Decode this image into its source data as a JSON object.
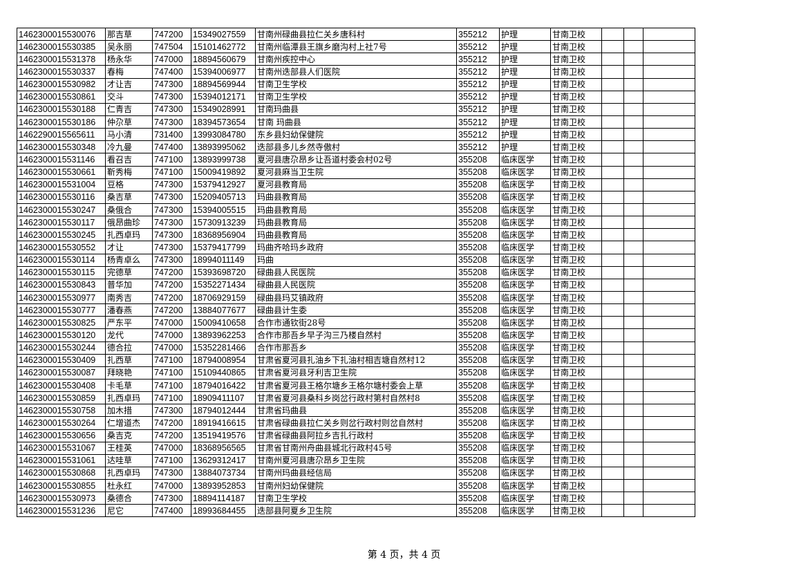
{
  "table": {
    "rows": [
      [
        "1462300015530076",
        "那吉草",
        "747200",
        "15349027559",
        "甘南州碌曲县拉仁关乡唐科村",
        "355212",
        "护理",
        "甘南卫校",
        "",
        "",
        ""
      ],
      [
        "1462300015530385",
        "吴永丽",
        "747504",
        "15101462772",
        "甘南州临潭县王旗乡磨沟村上社7号",
        "355212",
        "护理",
        "甘南卫校",
        "",
        "",
        ""
      ],
      [
        "1462300015531378",
        "杨永华",
        "747000",
        "18894560679",
        "甘南州疾控中心",
        "355212",
        "护理",
        "甘南卫校",
        "",
        "",
        ""
      ],
      [
        "1462300015530337",
        "春梅",
        "747400",
        "15394006977",
        "甘南州迭部县人们医院",
        "355212",
        "护理",
        "甘南卫校",
        "",
        "",
        ""
      ],
      [
        "1462300015530982",
        "才让吉",
        "747300",
        "18894569944",
        "甘南卫生学校",
        "355212",
        "护理",
        "甘南卫校",
        "",
        "",
        ""
      ],
      [
        "1462300015530861",
        "交斗",
        "747300",
        "15394012171",
        "甘南卫生学校",
        "355212",
        "护理",
        "甘南卫校",
        "",
        "",
        ""
      ],
      [
        "1462300015530188",
        "仁青吉",
        "747300",
        "15349028991",
        "甘南玛曲县",
        "355212",
        "护理",
        "甘南卫校",
        "",
        "",
        ""
      ],
      [
        "1462300015530186",
        "仲尕草",
        "747300",
        "18394573654",
        "甘南 玛曲县",
        "355212",
        "护理",
        "甘南卫校",
        "",
        "",
        ""
      ],
      [
        "1462290015565611",
        "马小清",
        "731400",
        "13993084780",
        "东乡县妇幼保健院",
        "355212",
        "护理",
        "甘南卫校",
        "",
        "",
        ""
      ],
      [
        "1462300015530348",
        "冷九曼",
        "747400",
        "13893995062",
        "迭部县多儿乡然寺傲村",
        "355212",
        "护理",
        "甘南卫校",
        "",
        "",
        ""
      ],
      [
        "1462300015531146",
        "看召吉",
        "747100",
        "13893999738",
        "夏河县唐尕昂乡让吾道村委会村02号",
        "355208",
        "临床医学",
        "甘南卫校",
        "",
        "",
        ""
      ],
      [
        "1462300015530661",
        "靳秀梅",
        "747100",
        "15009419892",
        "夏河县麻当卫生院",
        "355208",
        "临床医学",
        "甘南卫校",
        "",
        "",
        ""
      ],
      [
        "1462300015531004",
        "豆格",
        "747300",
        "15379412927",
        "夏河县教育局",
        "355208",
        "临床医学",
        "甘南卫校",
        "",
        "",
        ""
      ],
      [
        "1462300015530116",
        "桑吉草",
        "747300",
        "15209405713",
        "玛曲县教育局",
        "355208",
        "临床医学",
        "甘南卫校",
        "",
        "",
        ""
      ],
      [
        "1462300015530247",
        "桑俄合",
        "747300",
        "15394005515",
        "玛曲县教育局",
        "355208",
        "临床医学",
        "甘南卫校",
        "",
        "",
        ""
      ],
      [
        "1462300015530117",
        "俄昂曲珍",
        "747300",
        "15730913239",
        "玛曲县教育局",
        "355208",
        "临床医学",
        "甘南卫校",
        "",
        "",
        ""
      ],
      [
        "1462300015530245",
        "扎西卓玛",
        "747300",
        "18368956904",
        "玛曲县教育局",
        "355208",
        "临床医学",
        "甘南卫校",
        "",
        "",
        ""
      ],
      [
        "1462300015530552",
        "才让",
        "747300",
        "15379417799",
        "玛曲齐哈玛乡政府",
        "355208",
        "临床医学",
        "甘南卫校",
        "",
        "",
        ""
      ],
      [
        "1462300015530114",
        "杨青卓么",
        "747300",
        "18994011149",
        "玛曲",
        "355208",
        "临床医学",
        "甘南卫校",
        "",
        "",
        ""
      ],
      [
        "1462300015530115",
        "完德草",
        "747200",
        "15393698720",
        "碌曲县人民医院",
        "355208",
        "临床医学",
        "甘南卫校",
        "",
        "",
        ""
      ],
      [
        "1462300015530843",
        "普华加",
        "747200",
        "15352271434",
        "碌曲县人民医院",
        "355208",
        "临床医学",
        "甘南卫校",
        "",
        "",
        ""
      ],
      [
        "1462300015530977",
        "南秀吉",
        "747200",
        "18706929159",
        "碌曲县玛艾镇政府",
        "355208",
        "临床医学",
        "甘南卫校",
        "",
        "",
        ""
      ],
      [
        "1462300015530777",
        "潘春燕",
        "747200",
        "13884077677",
        "碌曲县计生委",
        "355208",
        "临床医学",
        "甘南卫校",
        "",
        "",
        ""
      ],
      [
        "1462300015530825",
        "严东平",
        "747000",
        "15009410658",
        "合作市通钦街28号",
        "355208",
        "临床医学",
        "甘南卫校",
        "",
        "",
        ""
      ],
      [
        "1462300015530120",
        "龙代",
        "747000",
        "13893962253",
        "合作市那吾乡早子沟三乃楼自然村",
        "355208",
        "临床医学",
        "甘南卫校",
        "",
        "",
        ""
      ],
      [
        "1462300015530244",
        "德合拉",
        "747000",
        "15352281466",
        "合作市那吾乡",
        "355208",
        "临床医学",
        "甘南卫校",
        "",
        "",
        ""
      ],
      [
        "1462300015530409",
        "扎西草",
        "747100",
        "18794008954",
        "甘肃省夏河县扎油乡下扎油村相吉塘自然村12",
        "355208",
        "临床医学",
        "甘南卫校",
        "",
        "",
        ""
      ],
      [
        "1462300015530087",
        "拜晓艳",
        "747100",
        "15109440865",
        "甘肃省夏河县牙利吉卫生院",
        "355208",
        "临床医学",
        "甘南卫校",
        "",
        "",
        ""
      ],
      [
        "1462300015530408",
        "卡毛草",
        "747100",
        "18794016422",
        "甘肃省夏河县王格尔塘乡王格尔塘村委会上草",
        "355208",
        "临床医学",
        "甘南卫校",
        "",
        "",
        ""
      ],
      [
        "1462300015530859",
        "扎西卓玛",
        "747100",
        "18909411107",
        "甘肃省夏河县桑科乡岗岔行政村第村自然村8",
        "355208",
        "临床医学",
        "甘南卫校",
        "",
        "",
        ""
      ],
      [
        "1462300015530758",
        "加木措",
        "747300",
        "18794012444",
        "甘肃省玛曲县",
        "355208",
        "临床医学",
        "甘南卫校",
        "",
        "",
        ""
      ],
      [
        "1462300015530264",
        "仁增道杰",
        "747200",
        "18919416615",
        "甘肃省碌曲县拉仁关乡则岔行政村则岔自然村",
        "355208",
        "临床医学",
        "甘南卫校",
        "",
        "",
        ""
      ],
      [
        "1462300015530656",
        "桑吉克",
        "747200",
        "13519419576",
        "甘肃省碌曲县阿拉乡吉扎行政村",
        "355208",
        "临床医学",
        "甘南卫校",
        "",
        "",
        ""
      ],
      [
        "1462300015531067",
        "王桂英",
        "747000",
        "18368956565",
        "甘肃省甘南州舟曲县城北行政村45号",
        "355208",
        "临床医学",
        "甘南卫校",
        "",
        "",
        ""
      ],
      [
        "1462300015531061",
        "达哇草",
        "747100",
        "13629312417",
        "甘南州夏河县唐尕昂乡卫生院",
        "355208",
        "临床医学",
        "甘南卫校",
        "",
        "",
        ""
      ],
      [
        "1462300015530868",
        "扎西卓玛",
        "747300",
        "13884073734",
        "甘南州玛曲县经信局",
        "355208",
        "临床医学",
        "甘南卫校",
        "",
        "",
        ""
      ],
      [
        "1462300015530855",
        "杜永红",
        "747000",
        "13893952853",
        "甘南州妇幼保健院",
        "355208",
        "临床医学",
        "甘南卫校",
        "",
        "",
        ""
      ],
      [
        "1462300015530973",
        "桑德合",
        "747300",
        "18894114187",
        "甘南卫生学校",
        "355208",
        "临床医学",
        "甘南卫校",
        "",
        "",
        ""
      ],
      [
        "1462300015531236",
        "尼它",
        "747400",
        "18993684455",
        "迭部县阿夏乡卫生院",
        "355208",
        "临床医学",
        "甘南卫校",
        "",
        "",
        ""
      ]
    ]
  },
  "footer": {
    "page_label": "第 4 页，共 4 页"
  }
}
